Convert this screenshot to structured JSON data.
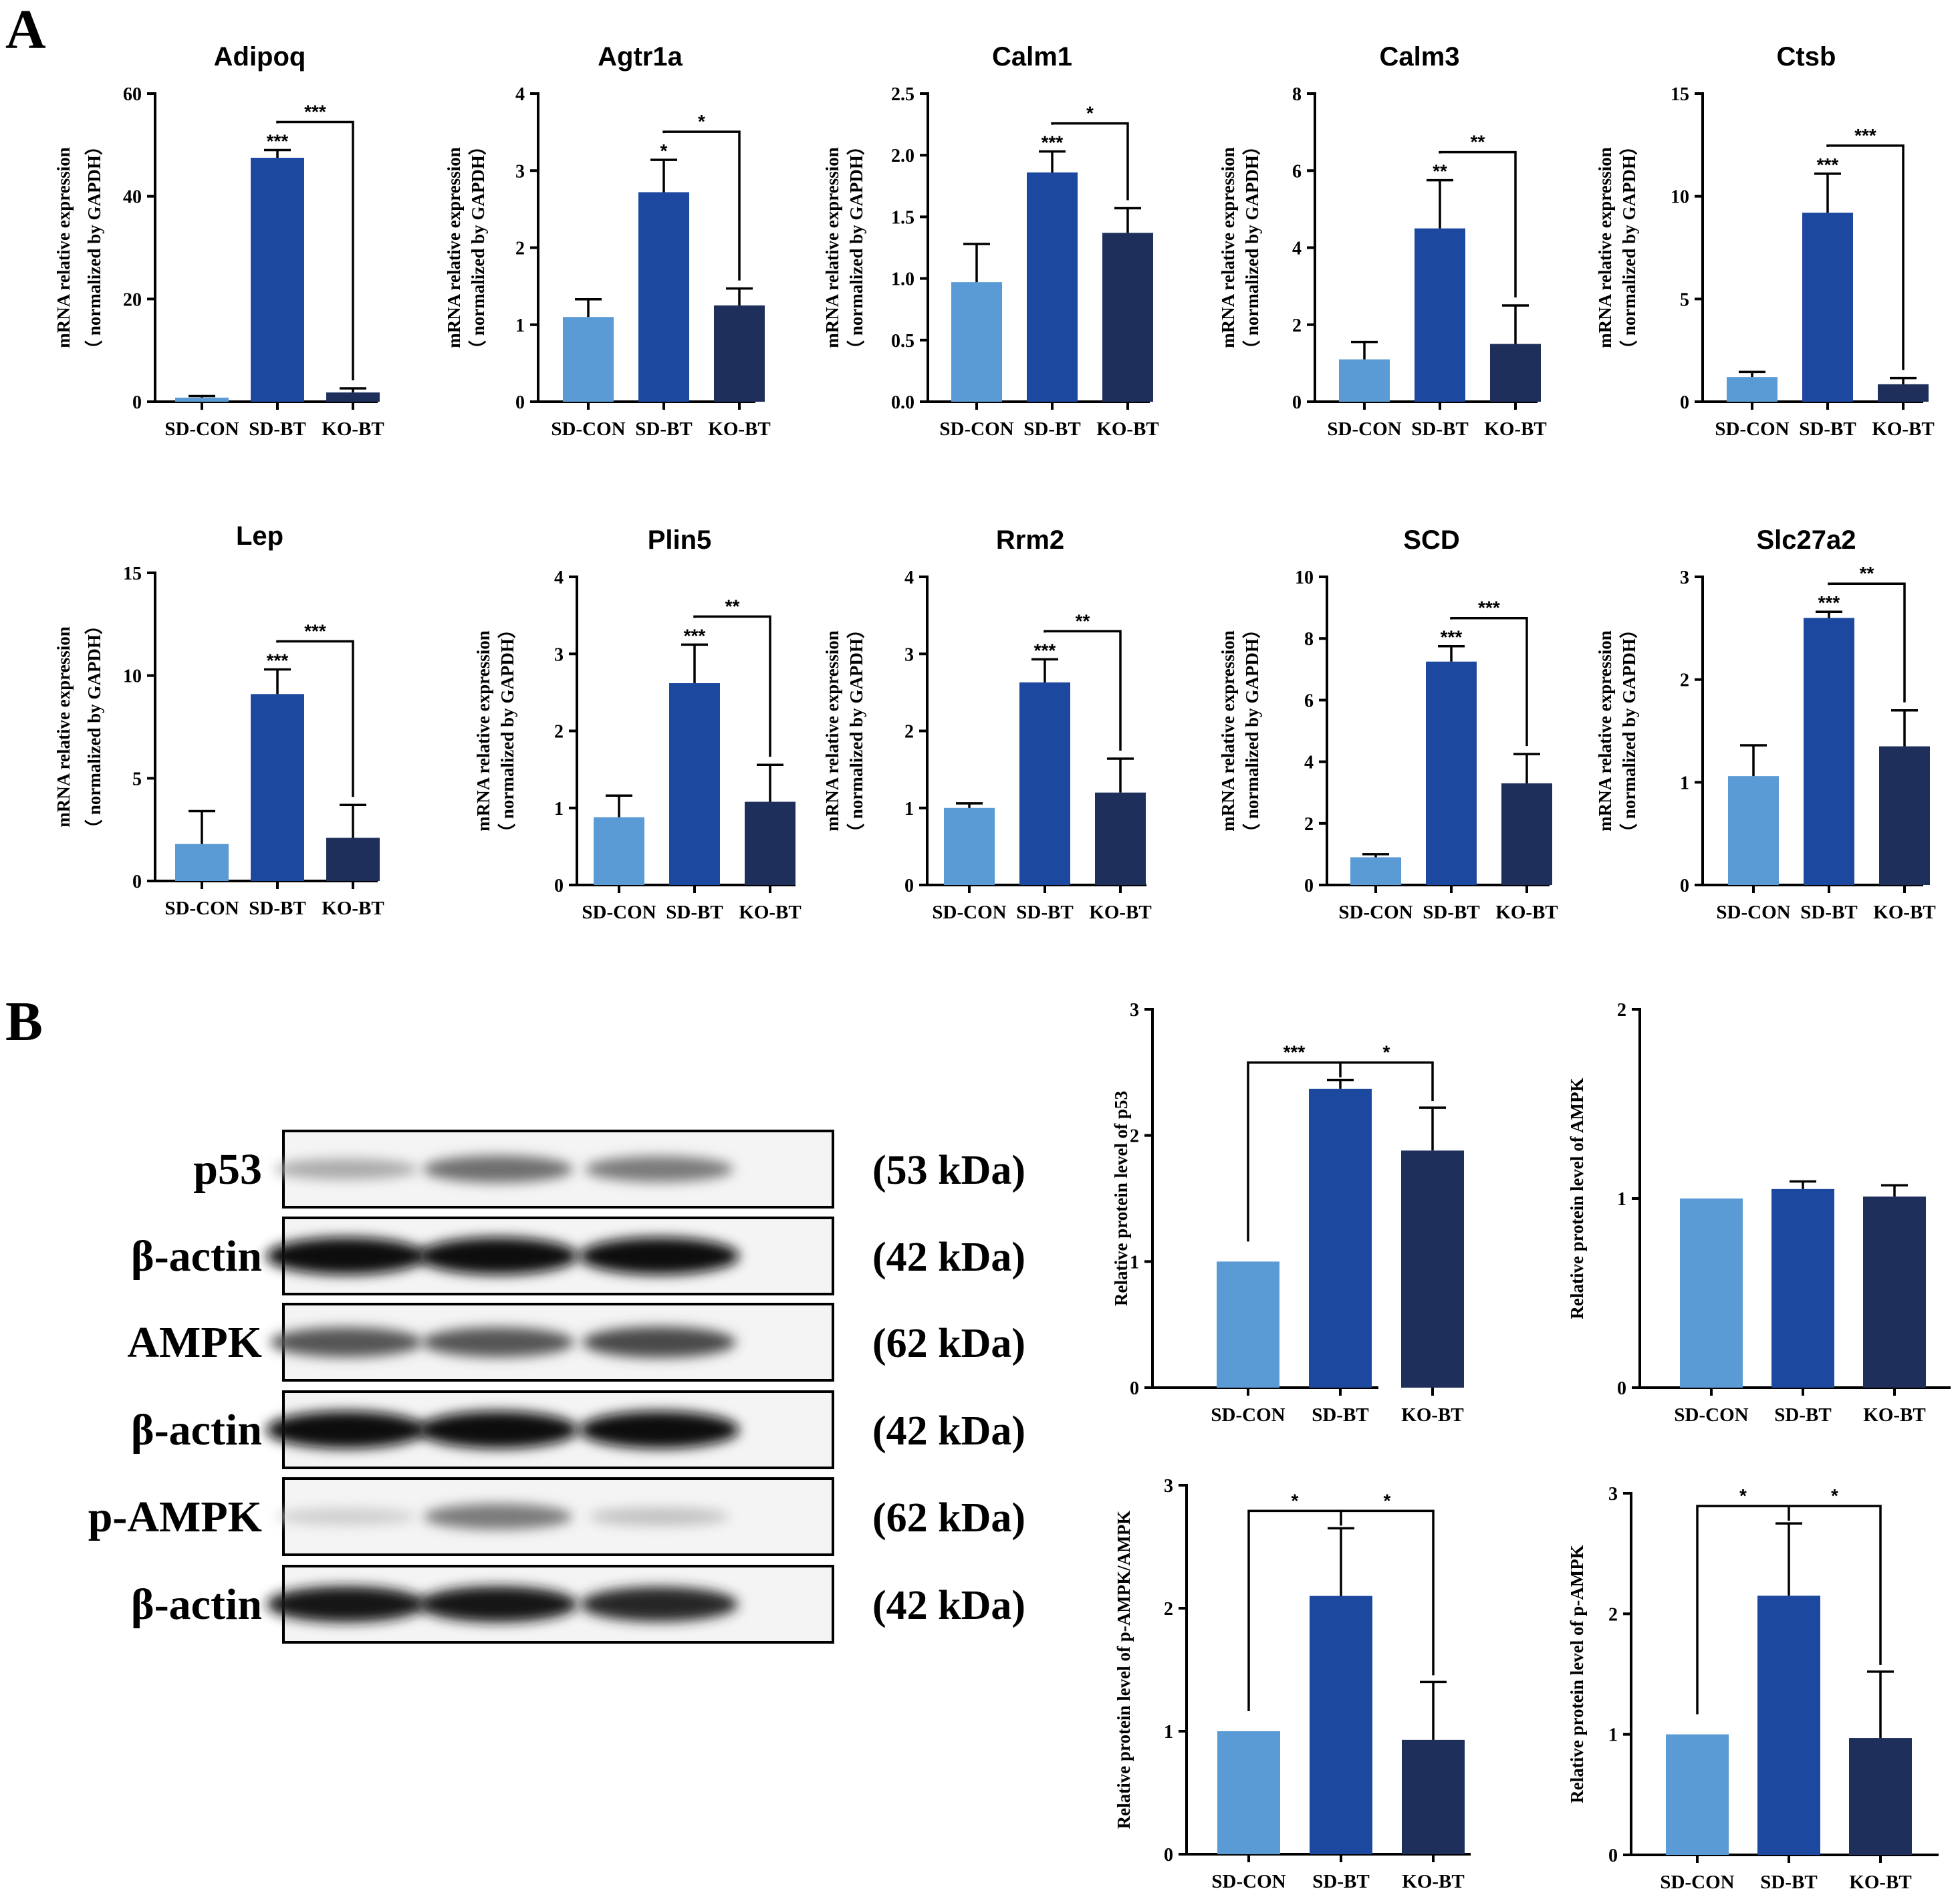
{
  "panel_labels": [
    "A",
    "B"
  ],
  "colors": {
    "SD-CON": "#5b9bd5",
    "SD-BT": "#1d48a0",
    "KO-BT": "#1f2f5c"
  },
  "categories": [
    "SD-CON",
    "SD-BT",
    "KO-BT"
  ],
  "chart_data": [
    {
      "type": "bar",
      "title": "Adipoq",
      "ylabel": [
        "mRNA relative expression",
        "（ normalized by GAPDH）"
      ],
      "categories": [
        "SD-CON",
        "SD-BT",
        "KO-BT"
      ],
      "values": [
        0.8,
        47.5,
        1.8
      ],
      "errors": [
        0.3,
        1.5,
        0.8
      ],
      "ylim": [
        0,
        60
      ],
      "yticks": [
        0,
        20,
        40,
        60
      ],
      "ytick_labels": [
        "0",
        "20",
        "40",
        "60"
      ],
      "sig_over_bar": [
        "",
        "***",
        ""
      ],
      "sig_bracket": {
        "from": 1,
        "to": 2,
        "label": "***"
      }
    },
    {
      "type": "bar",
      "title": "Agtr1a",
      "ylabel": [
        "mRNA relative expression",
        "（ normalized by GAPDH）"
      ],
      "categories": [
        "SD-CON",
        "SD-BT",
        "KO-BT"
      ],
      "values": [
        1.1,
        2.72,
        1.25
      ],
      "errors": [
        0.23,
        0.42,
        0.22
      ],
      "ylim": [
        0,
        4
      ],
      "yticks": [
        0,
        1,
        2,
        3,
        4
      ],
      "ytick_labels": [
        "0",
        "1",
        "2",
        "3",
        "4"
      ],
      "sig_over_bar": [
        "",
        "*",
        ""
      ],
      "sig_bracket": {
        "from": 1,
        "to": 2,
        "label": "*"
      }
    },
    {
      "type": "bar",
      "title": "Calm1",
      "ylabel": [
        "mRNA relative expression",
        "（ normalized by GAPDH）"
      ],
      "categories": [
        "SD-CON",
        "SD-BT",
        "KO-BT"
      ],
      "values": [
        0.97,
        1.86,
        1.37
      ],
      "errors": [
        0.31,
        0.17,
        0.2
      ],
      "ylim": [
        0,
        2.5
      ],
      "yticks": [
        0,
        0.5,
        1.0,
        1.5,
        2.0,
        2.5
      ],
      "ytick_labels": [
        "0.0",
        "0.5",
        "1.0",
        "1.5",
        "2.0",
        "2.5"
      ],
      "sig_over_bar": [
        "",
        "***",
        ""
      ],
      "sig_bracket": {
        "from": 1,
        "to": 2,
        "label": "*"
      }
    },
    {
      "type": "bar",
      "title": "Calm3",
      "ylabel": [
        "mRNA relative expression",
        "（ normalized by GAPDH）"
      ],
      "categories": [
        "SD-CON",
        "SD-BT",
        "KO-BT"
      ],
      "values": [
        1.1,
        4.5,
        1.5
      ],
      "errors": [
        0.45,
        1.25,
        1.0
      ],
      "ylim": [
        0,
        8
      ],
      "yticks": [
        0,
        2,
        4,
        6,
        8
      ],
      "ytick_labels": [
        "0",
        "2",
        "4",
        "6",
        "8"
      ],
      "sig_over_bar": [
        "",
        "**",
        ""
      ],
      "sig_bracket": {
        "from": 1,
        "to": 2,
        "label": "**"
      }
    },
    {
      "type": "bar",
      "title": "Ctsb",
      "ylabel": [
        "mRNA relative expression",
        "（ normalized by GAPDH）"
      ],
      "categories": [
        "SD-CON",
        "SD-BT",
        "KO-BT"
      ],
      "values": [
        1.2,
        9.2,
        0.85
      ],
      "errors": [
        0.25,
        1.9,
        0.3
      ],
      "ylim": [
        0,
        15
      ],
      "yticks": [
        0,
        5,
        10,
        15
      ],
      "ytick_labels": [
        "0",
        "5",
        "10",
        "15"
      ],
      "sig_over_bar": [
        "",
        "***",
        ""
      ],
      "sig_bracket": {
        "from": 1,
        "to": 2,
        "label": "***"
      }
    },
    {
      "type": "bar",
      "title": "Lep",
      "ylabel": [
        "mRNA relative expression",
        "（ normalized by GAPDH）"
      ],
      "categories": [
        "SD-CON",
        "SD-BT",
        "KO-BT"
      ],
      "values": [
        1.8,
        9.1,
        2.1
      ],
      "errors": [
        1.6,
        1.2,
        1.6
      ],
      "ylim": [
        0,
        15
      ],
      "yticks": [
        0,
        5,
        10,
        15
      ],
      "ytick_labels": [
        "0",
        "5",
        "10",
        "15"
      ],
      "sig_over_bar": [
        "",
        "***",
        ""
      ],
      "sig_bracket": {
        "from": 1,
        "to": 2,
        "label": "***"
      }
    },
    {
      "type": "bar",
      "title": "Plin5",
      "ylabel": [
        "mRNA relative expression",
        "（ normalized by GAPDH）"
      ],
      "categories": [
        "SD-CON",
        "SD-BT",
        "KO-BT"
      ],
      "values": [
        0.88,
        2.62,
        1.08
      ],
      "errors": [
        0.28,
        0.5,
        0.48
      ],
      "ylim": [
        0,
        4
      ],
      "yticks": [
        0,
        1,
        2,
        3,
        4
      ],
      "ytick_labels": [
        "0",
        "1",
        "2",
        "3",
        "4"
      ],
      "sig_over_bar": [
        "",
        "***",
        ""
      ],
      "sig_bracket": {
        "from": 1,
        "to": 2,
        "label": "**"
      }
    },
    {
      "type": "bar",
      "title": "Rrm2",
      "ylabel": [
        "mRNA relative expression",
        "（ normalized by GAPDH）"
      ],
      "categories": [
        "SD-CON",
        "SD-BT",
        "KO-BT"
      ],
      "values": [
        1.0,
        2.63,
        1.2
      ],
      "errors": [
        0.06,
        0.3,
        0.44
      ],
      "ylim": [
        0,
        4
      ],
      "yticks": [
        0,
        1,
        2,
        3,
        4
      ],
      "ytick_labels": [
        "0",
        "1",
        "2",
        "3",
        "4"
      ],
      "sig_over_bar": [
        "",
        "***",
        ""
      ],
      "sig_bracket": {
        "from": 1,
        "to": 2,
        "label": "**"
      }
    },
    {
      "type": "bar",
      "title": "SCD",
      "ylabel": [
        "mRNA relative expression",
        "（ normalized by GAPDH）"
      ],
      "categories": [
        "SD-CON",
        "SD-BT",
        "KO-BT"
      ],
      "values": [
        0.9,
        7.25,
        3.3
      ],
      "errors": [
        0.1,
        0.5,
        0.95
      ],
      "ylim": [
        0,
        10
      ],
      "yticks": [
        0,
        2,
        4,
        6,
        8,
        10
      ],
      "ytick_labels": [
        "0",
        "2",
        "4",
        "6",
        "8",
        "10"
      ],
      "sig_over_bar": [
        "",
        "***",
        ""
      ],
      "sig_bracket": {
        "from": 1,
        "to": 2,
        "label": "***"
      }
    },
    {
      "type": "bar",
      "title": "Slc27a2",
      "ylabel": [
        "mRNA relative expression",
        "（ normalized by GAPDH）"
      ],
      "categories": [
        "SD-CON",
        "SD-BT",
        "KO-BT"
      ],
      "values": [
        1.06,
        2.6,
        1.35
      ],
      "errors": [
        0.3,
        0.06,
        0.35
      ],
      "ylim": [
        0,
        3
      ],
      "yticks": [
        0,
        1,
        2,
        3
      ],
      "ytick_labels": [
        "0",
        "1",
        "2",
        "3"
      ],
      "sig_over_bar": [
        "",
        "***",
        ""
      ],
      "sig_bracket": {
        "from": 1,
        "to": 2,
        "label": "**"
      }
    },
    {
      "type": "bar",
      "title": "",
      "ylabel": [
        "Relative protein level of  p53"
      ],
      "categories": [
        "SD-CON",
        "SD-BT",
        "KO-BT"
      ],
      "values": [
        1.0,
        2.37,
        1.88
      ],
      "errors": [
        0,
        0.07,
        0.34
      ],
      "ylim": [
        0,
        3
      ],
      "yticks": [
        0,
        1,
        2,
        3
      ],
      "ytick_labels": [
        "0",
        "1",
        "2",
        "3"
      ],
      "sig_brackets": [
        {
          "from": 0,
          "to": 1,
          "label": "***"
        },
        {
          "from": 1,
          "to": 2,
          "label": "*"
        }
      ]
    },
    {
      "type": "bar",
      "title": "",
      "ylabel": [
        "Relative protein level of  AMPK"
      ],
      "categories": [
        "SD-CON",
        "SD-BT",
        "KO-BT"
      ],
      "values": [
        1.0,
        1.05,
        1.01
      ],
      "errors": [
        0,
        0.04,
        0.06
      ],
      "ylim": [
        0,
        2
      ],
      "yticks": [
        0,
        1,
        2
      ],
      "ytick_labels": [
        "0",
        "1",
        "2"
      ],
      "sig_brackets": []
    },
    {
      "type": "bar",
      "title": "",
      "ylabel": [
        "Relative protein level of  p-AMPK/AMPK"
      ],
      "categories": [
        "SD-CON",
        "SD-BT",
        "KO-BT"
      ],
      "values": [
        1.0,
        2.1,
        0.93
      ],
      "errors": [
        0,
        0.55,
        0.47
      ],
      "ylim": [
        0,
        3
      ],
      "yticks": [
        0,
        1,
        2,
        3
      ],
      "ytick_labels": [
        "0",
        "1",
        "2",
        "3"
      ],
      "sig_brackets": [
        {
          "from": 0,
          "to": 1,
          "label": "*"
        },
        {
          "from": 1,
          "to": 2,
          "label": "*"
        }
      ]
    },
    {
      "type": "bar",
      "title": "",
      "ylabel": [
        "Relative protein level of  p-AMPK"
      ],
      "categories": [
        "SD-CON",
        "SD-BT",
        "KO-BT"
      ],
      "values": [
        1.0,
        2.15,
        0.97
      ],
      "errors": [
        0,
        0.6,
        0.55
      ],
      "ylim": [
        0,
        3
      ],
      "yticks": [
        0,
        1,
        2,
        3
      ],
      "ytick_labels": [
        "0",
        "1",
        "2",
        "3"
      ],
      "sig_brackets": [
        {
          "from": 0,
          "to": 1,
          "label": "*"
        },
        {
          "from": 1,
          "to": 2,
          "label": "*"
        }
      ]
    }
  ],
  "blot": {
    "rows": [
      {
        "label": "p53",
        "mass": "(53 kDa)",
        "intensity": [
          0.35,
          0.6,
          0.55
        ]
      },
      {
        "label": "β-actin",
        "mass": "(42 kDa)",
        "intensity": [
          1.0,
          1.0,
          1.0
        ]
      },
      {
        "label": "AMPK",
        "mass": "(62 kDa)",
        "intensity": [
          0.7,
          0.7,
          0.75
        ]
      },
      {
        "label": "β-actin",
        "mass": "(42 kDa)",
        "intensity": [
          1.0,
          1.0,
          1.0
        ]
      },
      {
        "label": "p-AMPK",
        "mass": "(62 kDa)",
        "intensity": [
          0.2,
          0.55,
          0.25
        ]
      },
      {
        "label": "β-actin",
        "mass": "(42 kDa)",
        "intensity": [
          0.95,
          0.95,
          0.9
        ]
      }
    ]
  }
}
